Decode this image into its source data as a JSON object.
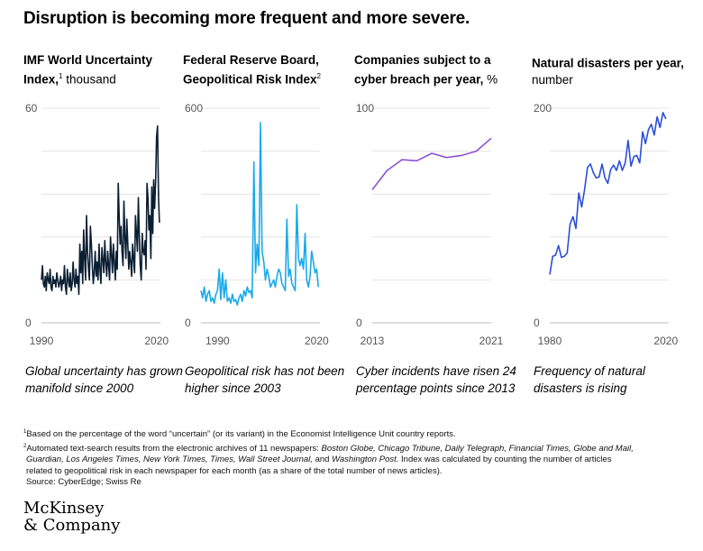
{
  "title": "Disruption is becoming more frequent and more severe.",
  "panels": [
    {
      "title_bold": "IMF World Uncertainty Index,",
      "title_sup": "1",
      "title_rest": " thousand",
      "caption": "Global uncertainty has grown manifold since 2000"
    },
    {
      "title_bold": "Federal Reserve Board, Geopolitical Risk Index",
      "title_sup": "2",
      "title_rest": "",
      "caption": "Geopolitical risk has not been higher since 2003"
    },
    {
      "title_bold": "Companies subject to a cyber breach per year,",
      "title_sup": "",
      "title_rest": " %",
      "caption": "Cyber incidents have risen 24 percentage points since 2013"
    },
    {
      "title_bold": "Natural disasters per year,",
      "title_sup": "",
      "title_rest": " number",
      "caption": "Frequency of natural disasters is rising"
    }
  ],
  "chart_data": [
    {
      "type": "line",
      "color": "#0b1f33",
      "xlim": [
        1990,
        2021
      ],
      "ylim": [
        0,
        60
      ],
      "yticks": [
        60,
        0
      ],
      "xticks": [
        1990,
        2020
      ],
      "grid": true,
      "x": [
        1990,
        1990.25,
        1990.5,
        1990.75,
        1991,
        1991.25,
        1991.5,
        1991.75,
        1992,
        1992.25,
        1992.5,
        1992.75,
        1993,
        1993.25,
        1993.5,
        1993.75,
        1994,
        1994.25,
        1994.5,
        1994.75,
        1995,
        1995.25,
        1995.5,
        1995.75,
        1996,
        1996.25,
        1996.5,
        1996.75,
        1997,
        1997.25,
        1997.5,
        1997.75,
        1998,
        1998.25,
        1998.5,
        1998.75,
        1999,
        1999.25,
        1999.5,
        1999.75,
        2000,
        2000.25,
        2000.5,
        2000.75,
        2001,
        2001.25,
        2001.5,
        2001.75,
        2002,
        2002.25,
        2002.5,
        2002.75,
        2003,
        2003.25,
        2003.5,
        2003.75,
        2004,
        2004.25,
        2004.5,
        2004.75,
        2005,
        2005.25,
        2005.5,
        2005.75,
        2006,
        2006.25,
        2006.5,
        2006.75,
        2007,
        2007.25,
        2007.5,
        2007.75,
        2008,
        2008.25,
        2008.5,
        2008.75,
        2009,
        2009.25,
        2009.5,
        2009.75,
        2010,
        2010.25,
        2010.5,
        2010.75,
        2011,
        2011.25,
        2011.5,
        2011.75,
        2012,
        2012.25,
        2012.5,
        2012.75,
        2013,
        2013.25,
        2013.5,
        2013.75,
        2014,
        2014.25,
        2014.5,
        2014.75,
        2015,
        2015.25,
        2015.5,
        2015.75,
        2016,
        2016.25,
        2016.5,
        2016.75,
        2017,
        2017.25,
        2017.5,
        2017.75,
        2018,
        2018.25,
        2018.5,
        2018.75,
        2019,
        2019.25,
        2019.5,
        2019.75,
        2020,
        2020.25,
        2020.5,
        2020.75
      ],
      "y": [
        12,
        16,
        11,
        10,
        13,
        9,
        14,
        12,
        11,
        15,
        10,
        9,
        13,
        11,
        12,
        10,
        14,
        12,
        10,
        11,
        13,
        9,
        12,
        11,
        16,
        10,
        8,
        15,
        12,
        10,
        14,
        9,
        11,
        17,
        12,
        10,
        15,
        11,
        13,
        8,
        22,
        14,
        20,
        11,
        26,
        18,
        12,
        30,
        20,
        15,
        12,
        27,
        22,
        16,
        11,
        14,
        20,
        13,
        17,
        12,
        22,
        15,
        11,
        21,
        18,
        14,
        23,
        17,
        13,
        20,
        16,
        12,
        24,
        19,
        14,
        22,
        17,
        12,
        20,
        15,
        39,
        30,
        22,
        27,
        20,
        16,
        34,
        24,
        18,
        29,
        22,
        15,
        20,
        17,
        13,
        22,
        18,
        14,
        30,
        25,
        20,
        35,
        24,
        16,
        12,
        25,
        20,
        19,
        23,
        15,
        39,
        35,
        26,
        30,
        18,
        38,
        25,
        40,
        32,
        40,
        52,
        55,
        35,
        28
      ]
    },
    {
      "type": "line",
      "color": "#1aa9e8",
      "xlim": [
        1985,
        2021
      ],
      "ylim": [
        0,
        600
      ],
      "yticks": [
        600,
        0
      ],
      "xticks": [
        1990,
        2020
      ],
      "grid": true,
      "x": [
        1985,
        1985.5,
        1986,
        1986.5,
        1987,
        1987.5,
        1988,
        1988.5,
        1989,
        1989.5,
        1990,
        1990.5,
        1991,
        1991.5,
        1992,
        1992.5,
        1993,
        1993.5,
        1994,
        1994.5,
        1995,
        1995.5,
        1996,
        1996.5,
        1997,
        1997.5,
        1998,
        1998.5,
        1999,
        1999.5,
        2000,
        2000.5,
        2001,
        2001.5,
        2002,
        2002.5,
        2003,
        2003.5,
        2004,
        2004.5,
        2005,
        2005.5,
        2006,
        2006.5,
        2007,
        2007.5,
        2008,
        2008.5,
        2009,
        2009.5,
        2010,
        2010.5,
        2011,
        2011.5,
        2012,
        2012.5,
        2013,
        2013.5,
        2014,
        2014.5,
        2015,
        2015.5,
        2016,
        2016.5,
        2017,
        2017.5,
        2018,
        2018.5,
        2019,
        2019.5,
        2020,
        2020.5
      ],
      "y": [
        90,
        70,
        100,
        60,
        80,
        90,
        60,
        70,
        55,
        80,
        90,
        150,
        65,
        140,
        70,
        120,
        60,
        70,
        55,
        80,
        60,
        65,
        50,
        70,
        80,
        60,
        90,
        75,
        100,
        85,
        90,
        70,
        450,
        140,
        220,
        160,
        560,
        200,
        170,
        120,
        150,
        130,
        100,
        110,
        120,
        100,
        130,
        150,
        140,
        110,
        100,
        90,
        290,
        130,
        150,
        110,
        100,
        90,
        330,
        180,
        160,
        180,
        150,
        250,
        120,
        100,
        130,
        200,
        170,
        140,
        150,
        100
      ]
    },
    {
      "type": "line",
      "color": "#8e51d6",
      "xlim": [
        2013,
        2021
      ],
      "ylim": [
        0,
        100
      ],
      "yticks": [
        100,
        0
      ],
      "xticks": [
        2013,
        2021
      ],
      "grid": true,
      "x": [
        2013,
        2014,
        2015,
        2016,
        2017,
        2018,
        2019,
        2020,
        2021
      ],
      "y": [
        62,
        71,
        76,
        75.5,
        79,
        77,
        78,
        80,
        86
      ]
    },
    {
      "type": "line",
      "color": "#2b4fd6",
      "xlim": [
        1980,
        2021
      ],
      "ylim": [
        0,
        200
      ],
      "yticks": [
        200,
        0
      ],
      "xticks": [
        1980,
        2020
      ],
      "grid": true,
      "x": [
        1980,
        1981,
        1982,
        1983,
        1984,
        1985,
        1986,
        1987,
        1988,
        1989,
        1990,
        1991,
        1992,
        1993,
        1994,
        1995,
        1996,
        1997,
        1998,
        1999,
        2000,
        2001,
        2002,
        2003,
        2004,
        2005,
        2006,
        2007,
        2008,
        2009,
        2010,
        2011,
        2012,
        2013,
        2014,
        2015,
        2016,
        2017,
        2018,
        2019,
        2020
      ],
      "y": [
        45,
        62,
        63,
        72,
        61,
        62,
        65,
        92,
        99,
        88,
        121,
        108,
        124,
        145,
        148,
        140,
        135,
        136,
        148,
        135,
        130,
        143,
        147,
        142,
        151,
        142,
        149,
        170,
        146,
        155,
        156,
        149,
        178,
        167,
        180,
        185,
        175,
        192,
        182,
        196,
        190
      ]
    }
  ],
  "notes": {
    "n1_sup": "1",
    "n1": "Based on the percentage of the word “uncertain” (or its variant) in the Economist Intelligence Unit country reports.",
    "n2_sup": "2",
    "n2a": "Automated text-search results from the electronic archives of 11 newspapers: ",
    "n2_papers1": "Boston Globe, Chicago Tribune, Daily Telegraph, Financial Times, Globe and Mail,",
    "n2_papers2": "Guardian, Los Angeles Times, New York Times, Times, Wall Street Journal,",
    "n2_and": " and ",
    "n2_papers3": "Washington Post.",
    "n2b": " Index was calculated by counting the number of articles",
    "n2c": "related to geopolitical risk in each newspaper for each month (as a share of the total number of news articles).",
    "source": "Source: CyberEdge; Swiss Re"
  },
  "logo_line1": "McKinsey",
  "logo_line2": "& Company"
}
